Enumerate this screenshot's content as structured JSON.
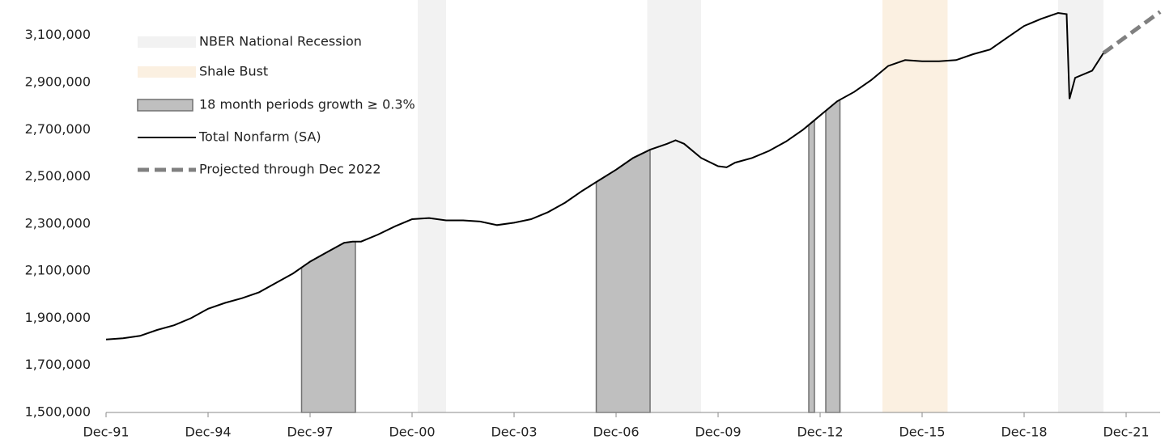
{
  "chart_data": {
    "type": "line",
    "xlim": [
      "Dec-91",
      "Dec-22"
    ],
    "xticks": [
      "Dec-91",
      "Dec-94",
      "Dec-97",
      "Dec-00",
      "Dec-03",
      "Dec-06",
      "Dec-09",
      "Dec-12",
      "Dec-15",
      "Dec-18",
      "Dec-21"
    ],
    "ylim": [
      1500000,
      3250000
    ],
    "yticks": [
      {
        "value": 1500000,
        "label": "1,500,000"
      },
      {
        "value": 1700000,
        "label": "1,700,000"
      },
      {
        "value": 1900000,
        "label": "1,900,000"
      },
      {
        "value": 2100000,
        "label": "2,100,000"
      },
      {
        "value": 2300000,
        "label": "2,300,000"
      },
      {
        "value": 2500000,
        "label": "2,500,000"
      },
      {
        "value": 2700000,
        "label": "2,700,000"
      },
      {
        "value": 2900000,
        "label": "2,900,000"
      },
      {
        "value": 3100000,
        "label": "3,100,000"
      }
    ],
    "bands": [
      {
        "name": "NBER National Recession",
        "color": "#f2f2f2",
        "periods": [
          [
            "Feb-01",
            "Dec-01"
          ],
          [
            "Nov-07",
            "Jun-09"
          ],
          [
            "Dec-19",
            "Apr-21"
          ]
        ]
      },
      {
        "name": "Shale Bust",
        "color": "#fbf0e1",
        "periods": [
          [
            "Oct-14",
            "Sep-16"
          ]
        ]
      },
      {
        "name": "18 month periods growth ≥ 0.3%",
        "color": "#bfbfbf",
        "under_line": true,
        "periods": [
          [
            "Sep-97",
            "Apr-99"
          ],
          [
            "May-06",
            "Dec-07"
          ],
          [
            "Aug-12",
            "Oct-12"
          ],
          [
            "Feb-13",
            "Jul-13"
          ]
        ]
      }
    ],
    "series": [
      {
        "name": "Total Nonfarm (SA)",
        "color": "#000000",
        "dashed": false,
        "x": [
          "Dec-91",
          "Jun-92",
          "Dec-92",
          "Jun-93",
          "Dec-93",
          "Jun-94",
          "Dec-94",
          "Jun-95",
          "Dec-95",
          "Jun-96",
          "Dec-96",
          "Jun-97",
          "Dec-97",
          "Jun-98",
          "Dec-98",
          "Mar-99",
          "Jun-99",
          "Dec-99",
          "Jun-00",
          "Dec-00",
          "Jun-01",
          "Dec-01",
          "Jun-02",
          "Dec-02",
          "Jun-03",
          "Dec-03",
          "Jun-04",
          "Dec-04",
          "Jun-05",
          "Dec-05",
          "Jun-06",
          "Dec-06",
          "Jun-07",
          "Dec-07",
          "Jun-08",
          "Sep-08",
          "Dec-08",
          "Jun-09",
          "Dec-09",
          "Mar-10",
          "Jun-10",
          "Dec-10",
          "Jun-11",
          "Dec-11",
          "Jun-12",
          "Dec-12",
          "Jun-13",
          "Dec-13",
          "Jun-14",
          "Dec-14",
          "Jun-15",
          "Dec-15",
          "Jun-16",
          "Dec-16",
          "Jun-17",
          "Dec-17",
          "Jun-18",
          "Dec-18",
          "Jun-19",
          "Dec-19",
          "Mar-20",
          "Apr-20",
          "Jun-20",
          "Dec-20",
          "Apr-21"
        ],
        "values": [
          1810000,
          1815000,
          1825000,
          1850000,
          1870000,
          1900000,
          1940000,
          1965000,
          1985000,
          2010000,
          2050000,
          2090000,
          2140000,
          2180000,
          2220000,
          2225000,
          2225000,
          2255000,
          2290000,
          2320000,
          2325000,
          2315000,
          2315000,
          2310000,
          2295000,
          2305000,
          2320000,
          2350000,
          2390000,
          2440000,
          2485000,
          2530000,
          2580000,
          2615000,
          2640000,
          2655000,
          2640000,
          2580000,
          2545000,
          2540000,
          2560000,
          2580000,
          2610000,
          2650000,
          2700000,
          2760000,
          2820000,
          2860000,
          2910000,
          2970000,
          2995000,
          2990000,
          2990000,
          2995000,
          3020000,
          3040000,
          3090000,
          3140000,
          3170000,
          3195000,
          3190000,
          2830000,
          2920000,
          2950000,
          3025000
        ]
      },
      {
        "name": "Projected through Dec 2022",
        "color": "#808080",
        "dashed": true,
        "x": [
          "Apr-21",
          "Dec-22"
        ],
        "values": [
          3025000,
          3200000
        ]
      }
    ]
  }
}
